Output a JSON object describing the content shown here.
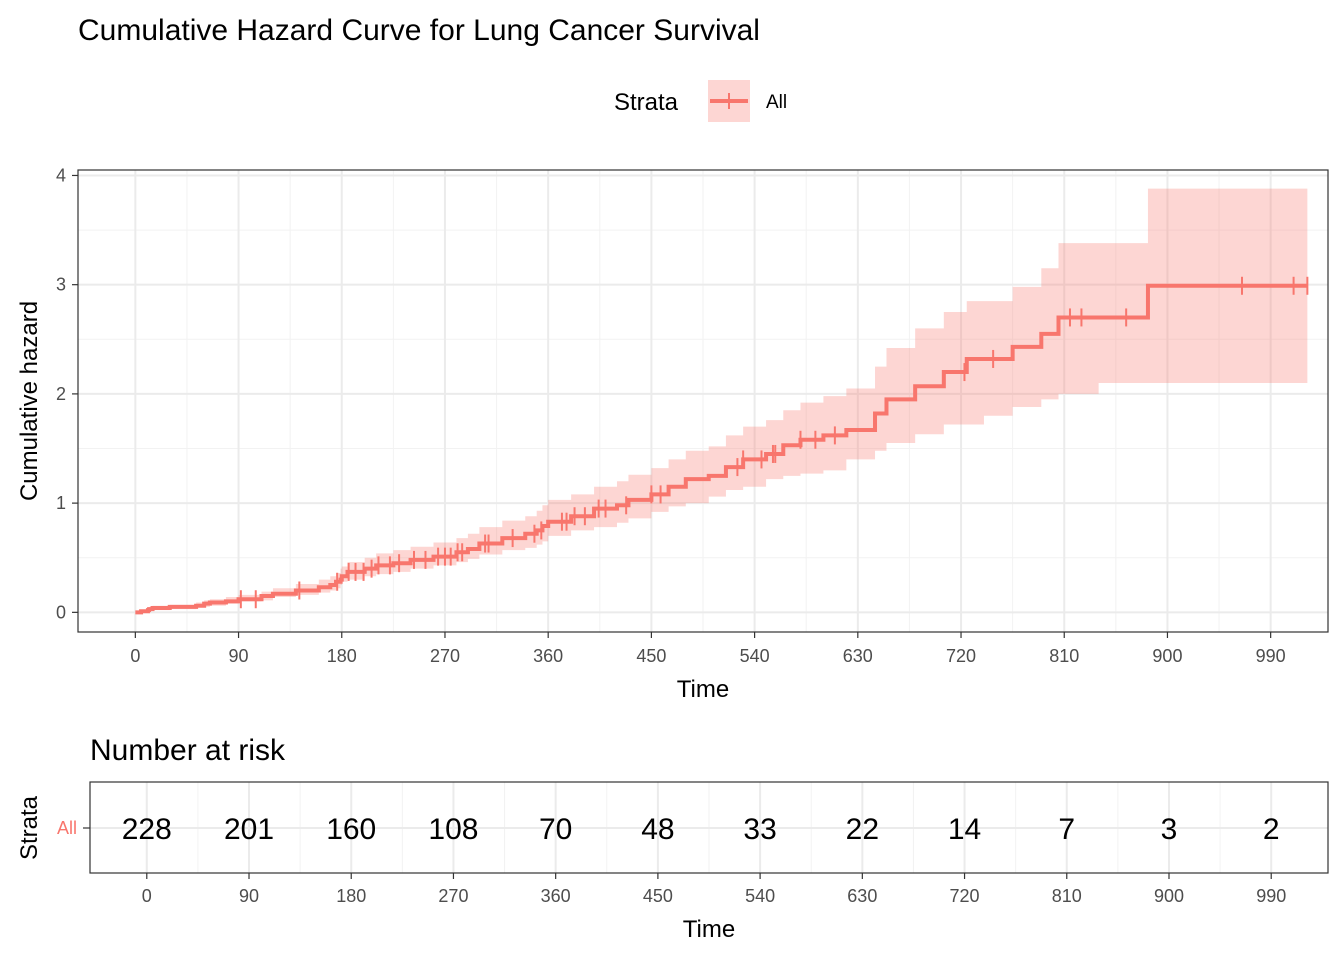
{
  "chart_data": [
    {
      "type": "line",
      "title": "Cumulative Hazard Curve for Lung Cancer Survival",
      "xlabel": "Time",
      "ylabel": "Cumulative hazard",
      "xlim": [
        -50,
        1040
      ],
      "ylim": [
        -0.18,
        4.05
      ],
      "xticks": [
        0,
        90,
        180,
        270,
        360,
        450,
        540,
        630,
        720,
        810,
        900,
        990
      ],
      "xtick_labels": [
        "0",
        "90",
        "180",
        "270",
        "360",
        "450",
        "540",
        "630",
        "720",
        "810",
        "900",
        "990"
      ],
      "yticks": [
        0,
        1,
        2,
        3,
        4
      ],
      "ytick_labels": [
        "0",
        "1",
        "2",
        "3",
        "4"
      ],
      "grid": true,
      "legend": {
        "title": "Strata",
        "placement": "top",
        "entries": [
          "All"
        ]
      },
      "colors": {
        "line": "#F8766D",
        "ribbon": "#F8766D"
      },
      "series": [
        {
          "name": "All",
          "x": [
            0,
            5,
            11,
            12,
            13,
            15,
            26,
            30,
            53,
            60,
            65,
            79,
            90,
            110,
            120,
            140,
            160,
            170,
            175,
            179,
            180,
            185,
            200,
            210,
            225,
            240,
            260,
            280,
            290,
            300,
            320,
            340,
            350,
            355,
            360,
            380,
            400,
            420,
            430,
            450,
            465,
            480,
            500,
            515,
            530,
            550,
            565,
            580,
            600,
            620,
            645,
            655,
            680,
            705,
            725,
            740,
            765,
            790,
            805,
            820,
            840,
            883,
            900,
            1000,
            1022
          ],
          "y": [
            0.0,
            0.01,
            0.02,
            0.03,
            0.03,
            0.04,
            0.04,
            0.05,
            0.06,
            0.08,
            0.09,
            0.1,
            0.12,
            0.15,
            0.17,
            0.2,
            0.23,
            0.25,
            0.28,
            0.3,
            0.33,
            0.37,
            0.4,
            0.43,
            0.45,
            0.48,
            0.51,
            0.55,
            0.58,
            0.63,
            0.68,
            0.72,
            0.75,
            0.79,
            0.83,
            0.88,
            0.95,
            0.98,
            1.03,
            1.08,
            1.15,
            1.22,
            1.25,
            1.33,
            1.4,
            1.45,
            1.53,
            1.58,
            1.62,
            1.67,
            1.82,
            1.95,
            2.07,
            2.2,
            2.32,
            2.32,
            2.43,
            2.55,
            2.7,
            2.7,
            2.7,
            2.99,
            2.99,
            2.99,
            2.99
          ],
          "lower": [
            0.0,
            0.0,
            0.0,
            0.01,
            0.01,
            0.02,
            0.02,
            0.02,
            0.03,
            0.05,
            0.05,
            0.06,
            0.08,
            0.1,
            0.11,
            0.14,
            0.16,
            0.18,
            0.2,
            0.22,
            0.25,
            0.28,
            0.3,
            0.33,
            0.35,
            0.37,
            0.4,
            0.43,
            0.46,
            0.49,
            0.53,
            0.57,
            0.59,
            0.62,
            0.65,
            0.7,
            0.75,
            0.78,
            0.82,
            0.86,
            0.92,
            0.97,
            1.0,
            1.06,
            1.12,
            1.15,
            1.22,
            1.25,
            1.27,
            1.3,
            1.4,
            1.48,
            1.55,
            1.63,
            1.72,
            1.72,
            1.8,
            1.88,
            1.95,
            2.0,
            2.0,
            2.1,
            2.1,
            2.1,
            2.1
          ],
          "upper": [
            0.0,
            0.02,
            0.04,
            0.05,
            0.05,
            0.06,
            0.06,
            0.07,
            0.09,
            0.11,
            0.12,
            0.14,
            0.16,
            0.19,
            0.22,
            0.26,
            0.3,
            0.33,
            0.36,
            0.4,
            0.42,
            0.46,
            0.5,
            0.54,
            0.57,
            0.6,
            0.64,
            0.68,
            0.72,
            0.78,
            0.84,
            0.88,
            0.93,
            0.98,
            1.03,
            1.08,
            1.15,
            1.2,
            1.26,
            1.32,
            1.4,
            1.48,
            1.52,
            1.62,
            1.7,
            1.76,
            1.85,
            1.92,
            1.98,
            2.05,
            2.25,
            2.42,
            2.6,
            2.75,
            2.85,
            2.85,
            2.98,
            3.15,
            3.38,
            3.38,
            3.38,
            3.88,
            3.88,
            3.88,
            3.88
          ]
        }
      ],
      "censor_marks": [
        92,
        105,
        143,
        176,
        186,
        192,
        199,
        206,
        212,
        222,
        230,
        243,
        253,
        264,
        270,
        275,
        281,
        285,
        305,
        308,
        329,
        348,
        354,
        372,
        376,
        383,
        392,
        404,
        410,
        428,
        450,
        458,
        525,
        530,
        546,
        556,
        558,
        580,
        593,
        610,
        723,
        748,
        815,
        825,
        864,
        965,
        1010,
        1022
      ]
    },
    {
      "type": "table",
      "title": "Number at risk",
      "xlabel": "Time",
      "ylabel": "Strata",
      "row_labels": [
        "All"
      ],
      "x": [
        0,
        90,
        180,
        270,
        360,
        450,
        540,
        630,
        720,
        810,
        900,
        990
      ],
      "xtick_labels": [
        "0",
        "90",
        "180",
        "270",
        "360",
        "450",
        "540",
        "630",
        "720",
        "810",
        "900",
        "990"
      ],
      "values": [
        "228",
        "201",
        "160",
        "108",
        "70",
        "48",
        "33",
        "22",
        "14",
        "7",
        "3",
        "2"
      ],
      "colors": {
        "row_label": "#F8766D"
      }
    }
  ]
}
